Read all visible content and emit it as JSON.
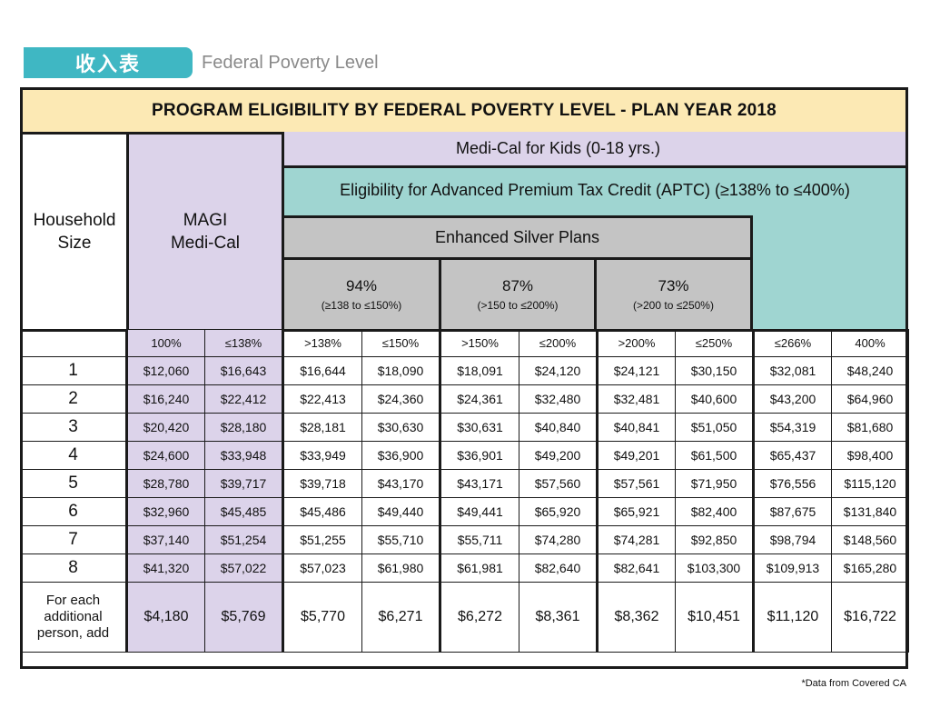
{
  "header": {
    "tab_label": "收入表",
    "subtitle": "Federal Poverty Level"
  },
  "table": {
    "title": "PROGRAM ELIGIBILITY BY FEDERAL POVERTY LEVEL - PLAN YEAR 2018",
    "household_label_1": "Household",
    "household_label_2": "Size",
    "magi_line1": "MAGI",
    "magi_line2": "Medi-Cal",
    "kids_band": "Medi-Cal for Kids (0-18 yrs.)",
    "aptc_band": "Eligibility for Advanced  Premium Tax Credit (APTC) (≥138% to ≤400%)",
    "silver_band": "Enhanced Silver Plans",
    "silver_tiers": [
      {
        "pct": "94%",
        "range": "(≥138 to ≤150%)"
      },
      {
        "pct": "87%",
        "range": "(>150 to ≤200%)"
      },
      {
        "pct": "73%",
        "range": "(>200 to ≤250%)"
      }
    ],
    "column_headers": [
      "100%",
      "≤138%",
      ">138%",
      "≤150%",
      ">150%",
      "≤200%",
      ">200%",
      "≤250%",
      "≤266%",
      "400%"
    ],
    "rows": [
      {
        "size": "1",
        "values": [
          "$12,060",
          "$16,643",
          "$16,644",
          "$18,090",
          "$18,091",
          "$24,120",
          "$24,121",
          "$30,150",
          "$32,081",
          "$48,240"
        ]
      },
      {
        "size": "2",
        "values": [
          "$16,240",
          "$22,412",
          "$22,413",
          "$24,360",
          "$24,361",
          "$32,480",
          "$32,481",
          "$40,600",
          "$43,200",
          "$64,960"
        ]
      },
      {
        "size": "3",
        "values": [
          "$20,420",
          "$28,180",
          "$28,181",
          "$30,630",
          "$30,631",
          "$40,840",
          "$40,841",
          "$51,050",
          "$54,319",
          "$81,680"
        ]
      },
      {
        "size": "4",
        "values": [
          "$24,600",
          "$33,948",
          "$33,949",
          "$36,900",
          "$36,901",
          "$49,200",
          "$49,201",
          "$61,500",
          "$65,437",
          "$98,400"
        ]
      },
      {
        "size": "5",
        "values": [
          "$28,780",
          "$39,717",
          "$39,718",
          "$43,170",
          "$43,171",
          "$57,560",
          "$57,561",
          "$71,950",
          "$76,556",
          "$115,120"
        ]
      },
      {
        "size": "6",
        "values": [
          "$32,960",
          "$45,485",
          "$45,486",
          "$49,440",
          "$49,441",
          "$65,920",
          "$65,921",
          "$82,400",
          "$87,675",
          "$131,840"
        ]
      },
      {
        "size": "7",
        "values": [
          "$37,140",
          "$51,254",
          "$51,255",
          "$55,710",
          "$55,711",
          "$74,280",
          "$74,281",
          "$92,850",
          "$98,794",
          "$148,560"
        ]
      },
      {
        "size": "8",
        "values": [
          "$41,320",
          "$57,022",
          "$57,023",
          "$61,980",
          "$61,981",
          "$82,640",
          "$82,641",
          "$103,300",
          "$109,913",
          "$165,280"
        ]
      }
    ],
    "additional_label_1": "For each",
    "additional_label_2": "additional",
    "additional_label_3": "person, add",
    "additional_values": [
      "$4,180",
      "$5,769",
      "$5,770",
      "$6,271",
      "$6,272",
      "$8,361",
      "$8,362",
      "$10,451",
      "$11,120",
      "$16,722"
    ]
  },
  "footnote": "*Data from Covered CA",
  "colors": {
    "tab": "#3fb7c3",
    "title_bg": "#fce9b4",
    "medi_cal": "#dcd3ea",
    "aptc": "#9fd5d1",
    "silver": "#c4c4c4"
  }
}
